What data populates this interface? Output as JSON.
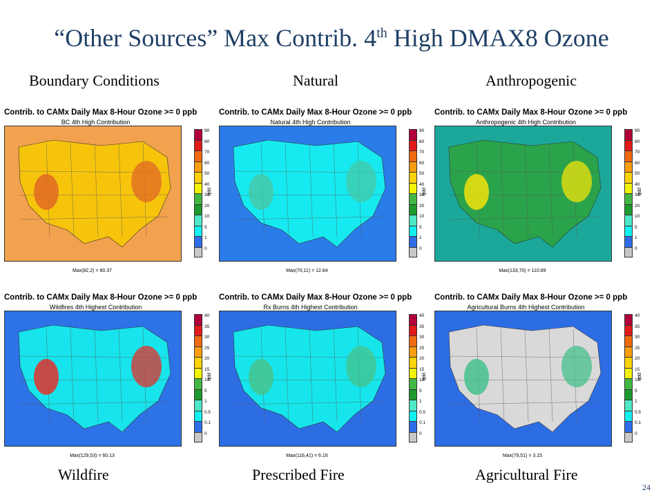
{
  "slide": {
    "title_main": "“Other Sources” Max Contrib. 4",
    "title_sup": "th",
    "title_tail": " High DMAX8 Ozone",
    "page_number": "24"
  },
  "captions": {
    "boundary": "Boundary Conditions",
    "natural": "Natural",
    "anthropogenic": "Anthropogenic",
    "wildfire": "Wildfire",
    "prescribed": "Prescribed Fire",
    "agricultural": "Agricultural Fire"
  },
  "scale_top": {
    "ticks": [
      "90",
      "80",
      "70",
      "60",
      "50",
      "40",
      "30",
      "20",
      "10",
      "5",
      "1",
      "0"
    ],
    "colors": [
      "#b3003a",
      "#e21a1a",
      "#f26a0f",
      "#fa9e0f",
      "#fcd20a",
      "#f2f208",
      "#42b843",
      "#1e9a2e",
      "#4ee8c6",
      "#14f0f0",
      "#2f6ee8",
      "#c8c8c8"
    ],
    "unit": "ppb"
  },
  "scale_bottom": {
    "ticks": [
      "40",
      "35",
      "30",
      "25",
      "20",
      "15",
      "10",
      "5",
      "1",
      "0.5",
      "0.1",
      "0"
    ],
    "colors": [
      "#b3003a",
      "#e21a1a",
      "#f26a0f",
      "#fa9e0f",
      "#fcd20a",
      "#f2f208",
      "#42b843",
      "#1e9a2e",
      "#4ee8c6",
      "#14f0f0",
      "#2f6ee8",
      "#c8c8c8"
    ],
    "unit": "ppb"
  },
  "panels": {
    "bc": {
      "title": "Contrib. to CAMx Daily Max 8-Hour Ozone >= 0 ppb",
      "subtitle": "BC 4th High Contribution",
      "max": "Max(82,2) = 80.37",
      "base": "#f7c40c",
      "accent": "#f2a14e",
      "hot": "#e06a25"
    },
    "nat": {
      "title": "Contrib. to CAMx Daily Max 8-Hour Ozone >= 0 ppb",
      "subtitle": "Natural 4th High Contribution",
      "max": "Max(70,11) = 12.84",
      "base": "#16eaf0",
      "accent": "#2a7ce8",
      "hot": "#44c9a8"
    },
    "anth": {
      "title": "Contrib. to CAMx Daily Max 8-Hour Ozone >= 0 ppb",
      "subtitle": "Anthropogenic 4th High Contribution",
      "max": "Max(133,70) = 110.89",
      "base": "#2aa34a",
      "accent": "#1ba89a",
      "hot": "#f2e30c"
    },
    "wild": {
      "title": "Contrib. to CAMx Daily Max 8-Hour Ozone >= 0 ppb",
      "subtitle": "Wildfires 4th Highest Contribution",
      "max": "Max(129,53) = 60.13",
      "base": "#17e4ec",
      "accent": "#2d72e6",
      "hot": "#e3312b"
    },
    "rx": {
      "title": "Contrib. to CAMx Daily Max 8-Hour Ozone >= 0 ppb",
      "subtitle": "Rx Burns 4th Highest Contribution",
      "max": "Max(116,41) = 6.16",
      "base": "#16e6ec",
      "accent": "#2d6de4",
      "hot": "#46c38c"
    },
    "ag": {
      "title": "Contrib. to CAMx Daily Max 8-Hour Ozone >= 0 ppb",
      "subtitle": "Agricultural Burns 4th Highest Contribution",
      "max": "Max(79,51) = 3.15",
      "base": "#d9d9d9",
      "accent": "#2d6de4",
      "hot": "#44c08c"
    }
  }
}
